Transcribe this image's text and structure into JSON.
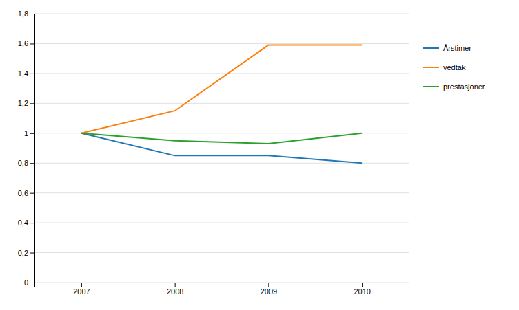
{
  "chart_data": {
    "type": "line",
    "x": [
      2007,
      2008,
      2009,
      2010
    ],
    "series": [
      {
        "name": "Årstimer",
        "values": [
          1.0,
          0.85,
          0.85,
          0.8
        ]
      },
      {
        "name": "vedtak",
        "values": [
          1.0,
          1.15,
          1.59,
          1.59
        ]
      },
      {
        "name": "prestasjoner",
        "values": [
          1.0,
          0.95,
          0.93,
          1.0
        ]
      }
    ],
    "xlim": [
      2006.5,
      2010.5
    ],
    "xticks": [
      2007,
      2008,
      2009,
      2010
    ],
    "ylim": [
      0,
      1.8
    ],
    "yticks": [
      0,
      {
        "value": 0.2,
        "label": "0,2"
      },
      {
        "value": 0.4,
        "label": "0,4"
      },
      {
        "value": 0.6,
        "label": "0,6"
      },
      {
        "value": 0.8,
        "label": "0,8"
      },
      1,
      {
        "value": 1.2,
        "label": "1,2"
      },
      {
        "value": 1.4,
        "label": "1,4"
      },
      {
        "value": 1.6,
        "label": "1,6"
      },
      {
        "value": 1.8,
        "label": "1,8"
      }
    ],
    "grid": true
  }
}
